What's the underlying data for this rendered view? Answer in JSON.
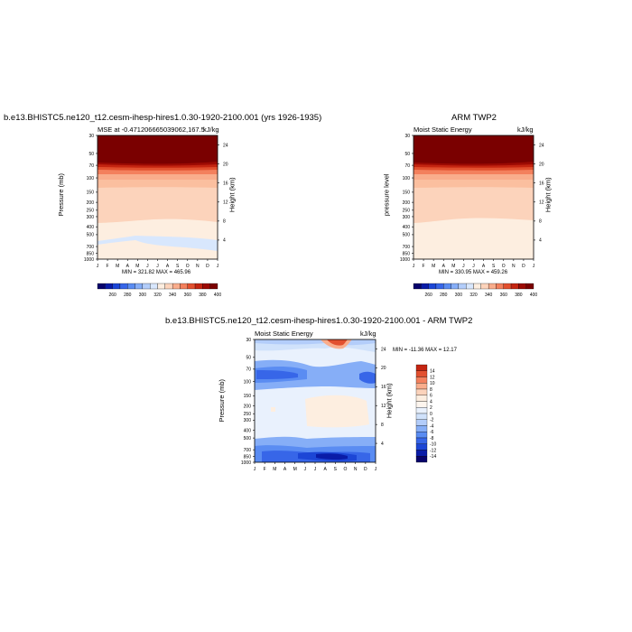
{
  "chart_data": [
    {
      "type": "heatmap",
      "title": "b.e13.BHISTC5.ne120_t12.cesm-ihesp-hires1.0.30-1920-2100.001 (yrs 1926-1935)",
      "subtitle_left": "MSE at -0.471206665039062,167.5",
      "units": "kJ/kg",
      "ylabel": "Pressure (mb)",
      "ylabel_right": "Height (km)",
      "x_ticks": [
        "J",
        "F",
        "M",
        "A",
        "M",
        "J",
        "J",
        "A",
        "S",
        "O",
        "N",
        "D",
        "J"
      ],
      "y_ticks": [
        30,
        50,
        70,
        100,
        150,
        200,
        250,
        300,
        400,
        500,
        700,
        850,
        1000
      ],
      "y_ticks_right": [
        24,
        20,
        16,
        12,
        8,
        4
      ],
      "stats": "MIN = 321.82 MAX = 465.96",
      "colorbar_labels": [
        "260",
        "280",
        "300",
        "320",
        "340",
        "360",
        "380",
        "400"
      ],
      "colorbar_colors": [
        "#08036b",
        "#0a1ca8",
        "#1c46d6",
        "#3766e8",
        "#5a8cf2",
        "#86aef7",
        "#b3cdfa",
        "#d8e7fd",
        "#fdeee0",
        "#fcd3bb",
        "#f9ad8c",
        "#f3805d",
        "#e2502f",
        "#c42511",
        "#9c0a03",
        "#7a0000"
      ]
    },
    {
      "type": "heatmap",
      "title": "ARM TWP2",
      "subtitle_left": "Moist Static Energy",
      "units": "kJ/kg",
      "ylabel": "pressure level",
      "ylabel_right": "Height (km)",
      "x_ticks": [
        "J",
        "F",
        "M",
        "A",
        "M",
        "J",
        "J",
        "A",
        "S",
        "O",
        "N",
        "D",
        "J"
      ],
      "y_ticks": [
        30,
        50,
        70,
        100,
        150,
        200,
        250,
        300,
        400,
        500,
        700,
        850,
        1000
      ],
      "y_ticks_right": [
        24,
        20,
        16,
        12,
        8,
        4
      ],
      "stats": "MIN = 330.95 MAX = 459.26",
      "colorbar_labels": [
        "260",
        "280",
        "300",
        "320",
        "340",
        "360",
        "380",
        "400"
      ]
    },
    {
      "type": "heatmap",
      "title": "b.e13.BHISTC5.ne120_t12.cesm-ihesp-hires1.0.30-1920-2100.001 - ARM TWP2",
      "subtitle_left": "Moist Static Energy",
      "units": "kJ/kg",
      "ylabel": "Pressure (mb)",
      "ylabel_right": "Height (km)",
      "x_ticks": [
        "J",
        "F",
        "M",
        "A",
        "M",
        "J",
        "J",
        "A",
        "S",
        "O",
        "N",
        "D",
        "J"
      ],
      "y_ticks": [
        30,
        50,
        70,
        100,
        150,
        200,
        250,
        300,
        400,
        500,
        700,
        850,
        1000
      ],
      "y_ticks_right": [
        24,
        20,
        16,
        12,
        8,
        4
      ],
      "stats": "MIN = -11.36 MAX =  12.17",
      "colorbar_labels": [
        "14",
        "12",
        "10",
        "8",
        "6",
        "4",
        "2",
        "0",
        "-2",
        "-4",
        "-6",
        "-8",
        "-10",
        "-12",
        "-14"
      ],
      "colorbar_colors": [
        "#c42511",
        "#e2502f",
        "#f3805d",
        "#f9ad8c",
        "#fcd3bb",
        "#fdeee0",
        "#fdf5ee",
        "#e9f1fd",
        "#d0e2fb",
        "#b3cdfa",
        "#86aef7",
        "#5a8cf2",
        "#3766e8",
        "#1c46d6",
        "#0a1ca8",
        "#08036b"
      ]
    }
  ]
}
